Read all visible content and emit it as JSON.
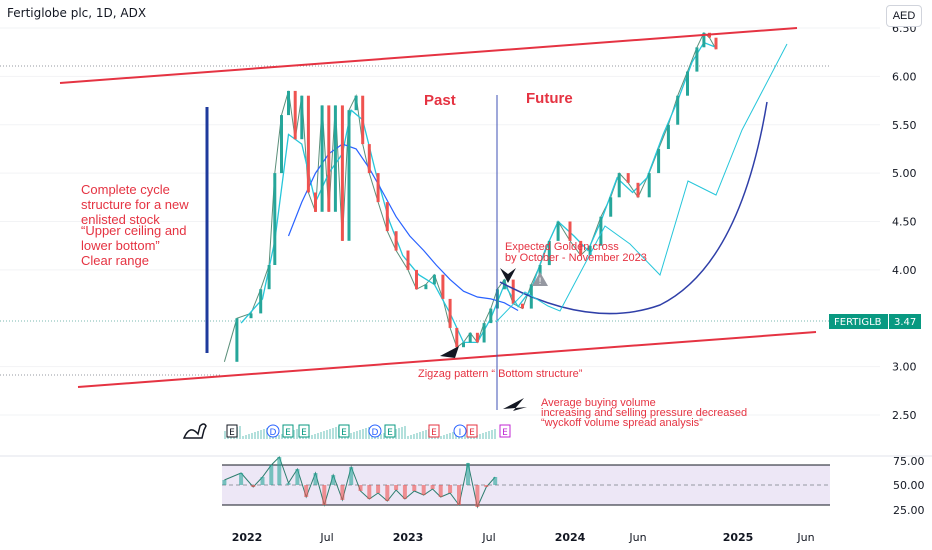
{
  "header": {
    "title": "Fertiglobe plc, 1D, ADX",
    "currency": "AED"
  },
  "price_tag": {
    "symbol": "FERTIGLB",
    "value": "3.47"
  },
  "annotations": {
    "left_text": [
      "Complete cycle",
      "structure for a new",
      "enlisted  stock",
      "",
      "“Upper ceiling and",
      "lower bottom”",
      "Clear range"
    ],
    "past": "Past",
    "future": "Future",
    "golden_cross": [
      "Expected Golden cross",
      "by October - November 2023"
    ],
    "zigzag": "Zigzag pattern “ Bottom structure”",
    "volume_note": [
      "Average buying volume",
      " increasing and selling pressure decreased",
      "“wyckoff volume spread analysis”"
    ]
  },
  "event_markers": [
    "E",
    "D",
    "E",
    "E",
    "E",
    "D",
    "E",
    "E",
    "I",
    "E",
    "E"
  ],
  "colors": {
    "up": "#26a69a",
    "down": "#ef5350",
    "ma_fast": "#26c6da",
    "ma_slow": "#2962ff",
    "trend": "#e53342",
    "vline": "#3f51b5",
    "rsi_bg": "#ede7f6",
    "tag_bg": "#089981"
  },
  "chart_data": [
    {
      "type": "line",
      "title": "Fertiglobe plc, 1D, ADX",
      "y_axis_ticks": [
        "6.50",
        "6.00",
        "5.50",
        "5.00",
        "4.50",
        "4.00",
        "3.00",
        "2.50"
      ],
      "x_axis_ticks": [
        "2022",
        "Jul",
        "2023",
        "Jul",
        "2024",
        "Jun",
        "2025",
        "Jun"
      ],
      "ylim": [
        2.3,
        6.6
      ],
      "last_price": 3.47,
      "series": [
        {
          "values": [
            [
              "2021-12-05",
              3.05
            ],
            [
              "2021-12-20",
              3.5
            ],
            [
              "2022-01-10",
              3.55
            ],
            [
              "2022-02-01",
              3.8
            ],
            [
              "2022-02-20",
              4.05
            ],
            [
              "2022-03-05",
              5.0
            ],
            [
              "2022-03-20",
              5.6
            ],
            [
              "2022-04-05",
              5.85
            ],
            [
              "2022-04-20",
              5.35
            ],
            [
              "2022-05-05",
              5.8
            ],
            [
              "2022-05-20",
              4.8
            ],
            [
              "2022-06-05",
              4.6
            ],
            [
              "2022-06-20",
              5.7
            ],
            [
              "2022-07-05",
              4.6
            ],
            [
              "2022-07-20",
              5.7
            ],
            [
              "2022-08-05",
              4.3
            ],
            [
              "2022-08-20",
              5.65
            ],
            [
              "2022-09-05",
              5.8
            ],
            [
              "2022-09-20",
              5.3
            ],
            [
              "2022-10-05",
              5.0
            ],
            [
              "2022-10-25",
              4.7
            ],
            [
              "2022-11-15",
              4.4
            ],
            [
              "2022-12-05",
              4.2
            ],
            [
              "2023-01-01",
              4.0
            ],
            [
              "2023-01-20",
              3.8
            ],
            [
              "2023-02-10",
              3.85
            ],
            [
              "2023-03-01",
              3.95
            ],
            [
              "2023-03-20",
              3.7
            ],
            [
              "2023-04-05",
              3.4
            ],
            [
              "2023-04-20",
              3.2
            ],
            [
              "2023-05-05",
              3.25
            ],
            [
              "2023-05-20",
              3.35
            ],
            [
              "2023-06-05",
              3.25
            ],
            [
              "2023-06-20",
              3.45
            ],
            [
              "2023-07-05",
              3.6
            ],
            [
              "2023-07-20",
              3.8
            ],
            [
              "2023-08-05",
              3.9
            ],
            [
              "2023-08-25",
              3.65
            ],
            [
              "2023-09-15",
              3.6
            ],
            [
              "2023-10-05",
              3.85
            ],
            [
              "2023-10-25",
              4.05
            ],
            [
              "2023-11-15",
              4.3
            ],
            [
              "2023-12-05",
              4.5
            ],
            [
              "2024-01-01",
              4.3
            ],
            [
              "2024-01-25",
              4.15
            ],
            [
              "2024-02-15",
              4.25
            ],
            [
              "2024-03-10",
              4.55
            ],
            [
              "2024-04-01",
              4.75
            ],
            [
              "2024-04-20",
              5.0
            ],
            [
              "2024-05-10",
              4.9
            ],
            [
              "2024-06-01",
              4.75
            ],
            [
              "2024-06-25",
              5.0
            ],
            [
              "2024-07-15",
              5.25
            ],
            [
              "2024-08-05",
              5.5
            ],
            [
              "2024-08-25",
              5.8
            ],
            [
              "2024-09-15",
              6.05
            ],
            [
              "2024-10-05",
              6.3
            ],
            [
              "2024-10-20",
              6.45
            ],
            [
              "2024-11-01",
              6.4
            ],
            [
              "2024-11-15",
              6.28
            ]
          ]
        },
        {
          "name": "",
          "values": [
            [
              "2021-12-25",
              3.45
            ],
            [
              "2022-02-05",
              3.7
            ],
            [
              "2022-03-05",
              4.3
            ],
            [
              "2022-04-05",
              5.4
            ],
            [
              "2022-05-05",
              5.3
            ],
            [
              "2022-06-05",
              4.7
            ],
            [
              "2022-07-05",
              5.0
            ],
            [
              "2022-08-05",
              5.2
            ],
            [
              "2022-08-25",
              5.65
            ],
            [
              "2022-09-20",
              5.55
            ],
            [
              "2022-10-20",
              5.0
            ],
            [
              "2022-11-20",
              4.5
            ],
            [
              "2022-12-20",
              4.15
            ],
            [
              "2023-01-25",
              3.95
            ],
            [
              "2023-03-01",
              3.85
            ],
            [
              "2023-04-05",
              3.55
            ],
            [
              "2023-05-05",
              3.25
            ],
            [
              "2023-06-05",
              3.25
            ],
            [
              "2023-07-05",
              3.5
            ],
            [
              "2023-08-05",
              3.85
            ],
            [
              "2023-09-05",
              3.62
            ],
            [
              "2023-10-05",
              3.8
            ],
            [
              "2023-11-05",
              4.2
            ],
            [
              "2023-12-05",
              4.5
            ],
            [
              "2024-01-10",
              4.35
            ],
            [
              "2024-02-10",
              4.2
            ],
            [
              "2024-03-10",
              4.5
            ],
            [
              "2024-04-15",
              4.95
            ],
            [
              "2024-05-20",
              4.8
            ],
            [
              "2024-06-20",
              4.95
            ],
            [
              "2024-07-25",
              5.4
            ],
            [
              "2024-08-25",
              5.75
            ],
            [
              "2024-09-25",
              6.15
            ],
            [
              "2024-10-20",
              6.35
            ],
            [
              "2024-11-15",
              6.3
            ]
          ]
        },
        {
          "name": "",
          "values": [
            [
              "2022-04-05",
              4.35
            ],
            [
              "2022-05-05",
              4.7
            ],
            [
              "2022-06-05",
              5.0
            ],
            [
              "2022-07-05",
              5.2
            ],
            [
              "2022-08-05",
              5.3
            ],
            [
              "2022-09-05",
              5.25
            ],
            [
              "2022-10-05",
              5.05
            ],
            [
              "2022-11-05",
              4.8
            ],
            [
              "2022-12-05",
              4.55
            ],
            [
              "2023-01-05",
              4.35
            ],
            [
              "2023-02-05",
              4.2
            ],
            [
              "2023-03-05",
              4.05
            ],
            [
              "2023-04-05",
              3.9
            ],
            [
              "2023-05-05",
              3.78
            ],
            [
              "2023-06-05",
              3.72
            ],
            [
              "2023-07-05",
              3.7
            ],
            [
              "2023-08-05",
              3.66
            ],
            [
              "2023-09-05",
              3.58
            ]
          ]
        }
      ]
    },
    {
      "type": "line",
      "title": "",
      "y_axis_ticks": [
        "75.00",
        "50.00",
        "25.00"
      ],
      "ylim": [
        20,
        80
      ],
      "upper_band": 70,
      "lower_band": 30,
      "middle": 50,
      "series": [
        {
          "values": [
            [
              "2021-12-05",
              55
            ],
            [
              "2021-12-25",
              62
            ],
            [
              "2022-01-15",
              48
            ],
            [
              "2022-02-05",
              58
            ],
            [
              "2022-02-25",
              70
            ],
            [
              "2022-03-15",
              78
            ],
            [
              "2022-04-05",
              52
            ],
            [
              "2022-04-25",
              66
            ],
            [
              "2022-05-15",
              38
            ],
            [
              "2022-06-05",
              62
            ],
            [
              "2022-06-25",
              30
            ],
            [
              "2022-07-15",
              60
            ],
            [
              "2022-08-05",
              35
            ],
            [
              "2022-08-25",
              68
            ],
            [
              "2022-09-15",
              44
            ],
            [
              "2022-10-05",
              36
            ],
            [
              "2022-10-25",
              42
            ],
            [
              "2022-11-15",
              34
            ],
            [
              "2022-12-05",
              45
            ],
            [
              "2022-12-25",
              36
            ],
            [
              "2023-01-15",
              44
            ],
            [
              "2023-02-05",
              40
            ],
            [
              "2023-02-25",
              46
            ],
            [
              "2023-03-15",
              38
            ],
            [
              "2023-04-05",
              42
            ],
            [
              "2023-04-25",
              30
            ],
            [
              "2023-05-15",
              72
            ],
            [
              "2023-06-05",
              28
            ],
            [
              "2023-06-25",
              48
            ],
            [
              "2023-07-15",
              58
            ]
          ]
        }
      ]
    }
  ]
}
